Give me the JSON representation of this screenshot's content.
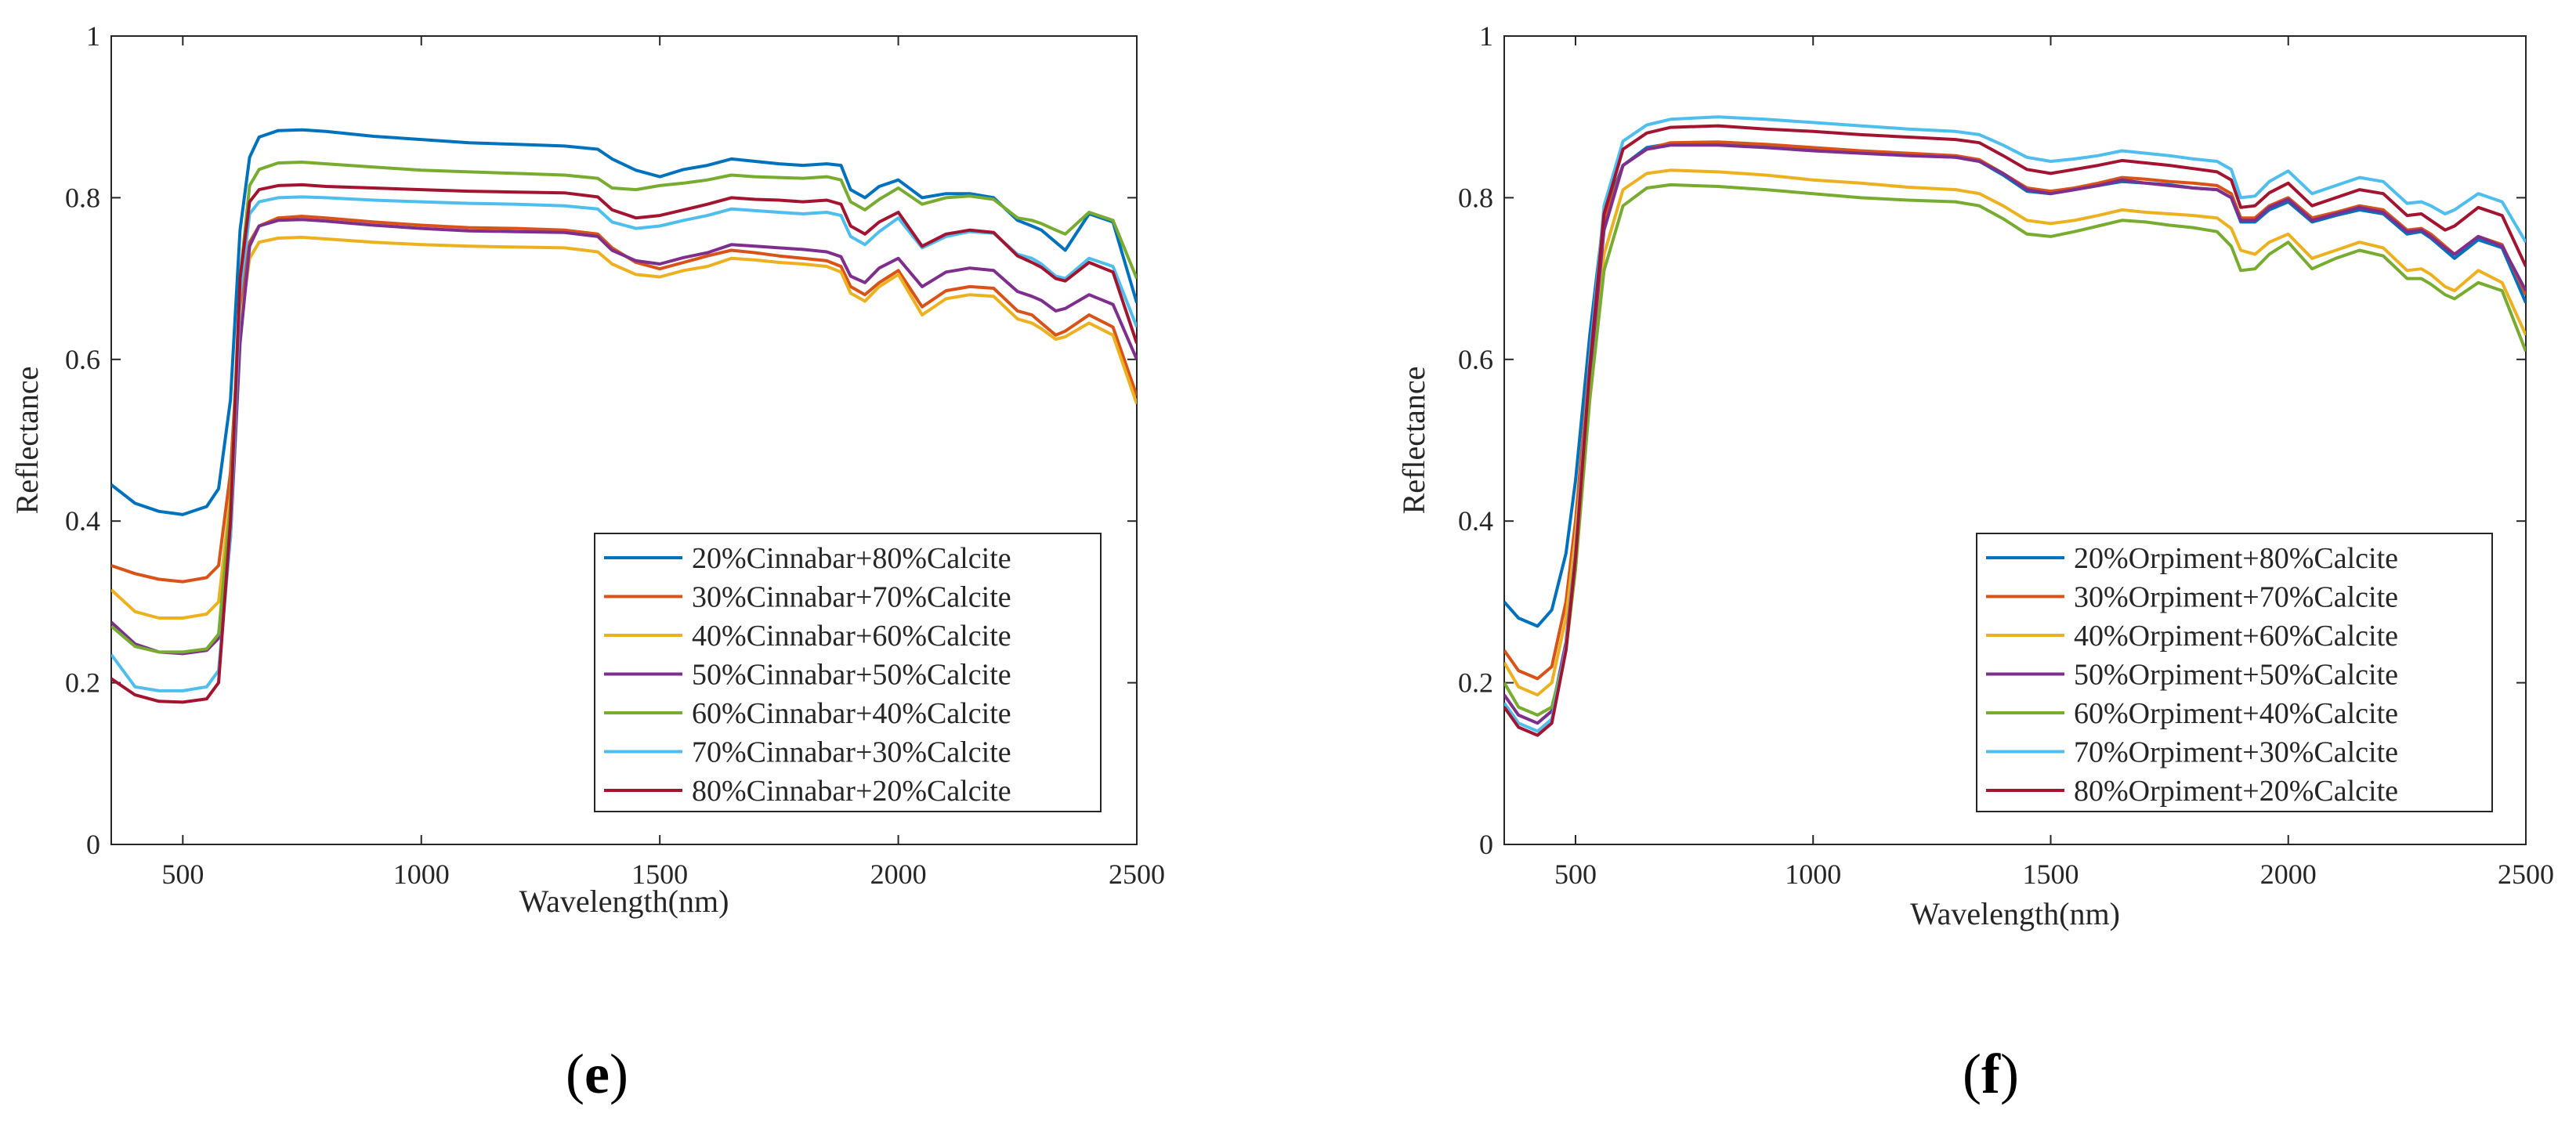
{
  "chart_data": [
    {
      "type": "line",
      "panel_label_open": "(",
      "panel_label_letter": "e",
      "panel_label_close": ")",
      "xlabel": "Wavelength(nm)",
      "ylabel": "Reflectance",
      "xlim": [
        350,
        2500
      ],
      "ylim": [
        0,
        1
      ],
      "xticks": [
        500,
        1000,
        1500,
        2000,
        2500
      ],
      "yticks": [
        0,
        0.2,
        0.4,
        0.6,
        0.8,
        1
      ],
      "ytick_labels": [
        "0",
        "0.2",
        "0.4",
        "0.6",
        "0.8",
        "1"
      ],
      "legend_position": "bottom-right",
      "x": [
        350,
        400,
        450,
        500,
        550,
        575,
        600,
        620,
        640,
        660,
        700,
        750,
        800,
        900,
        1000,
        1100,
        1200,
        1300,
        1370,
        1400,
        1450,
        1500,
        1550,
        1600,
        1650,
        1700,
        1750,
        1800,
        1850,
        1880,
        1900,
        1930,
        1960,
        2000,
        2050,
        2100,
        2150,
        2200,
        2250,
        2280,
        2300,
        2330,
        2350,
        2400,
        2450,
        2500
      ],
      "series": [
        {
          "name": "20%Cinnabar+80%Calcite",
          "color": "#0072BD",
          "values": [
            0.445,
            0.422,
            0.412,
            0.408,
            0.418,
            0.44,
            0.55,
            0.76,
            0.85,
            0.875,
            0.883,
            0.884,
            0.882,
            0.876,
            0.872,
            0.868,
            0.866,
            0.864,
            0.86,
            0.848,
            0.834,
            0.826,
            0.835,
            0.84,
            0.848,
            0.845,
            0.842,
            0.84,
            0.842,
            0.84,
            0.81,
            0.8,
            0.814,
            0.822,
            0.8,
            0.805,
            0.805,
            0.8,
            0.772,
            0.765,
            0.76,
            0.745,
            0.735,
            0.78,
            0.77,
            0.67
          ]
        },
        {
          "name": "30%Cinnabar+70%Calcite",
          "color": "#D95319",
          "values": [
            0.345,
            0.335,
            0.328,
            0.325,
            0.33,
            0.345,
            0.46,
            0.66,
            0.745,
            0.765,
            0.775,
            0.777,
            0.775,
            0.77,
            0.766,
            0.763,
            0.762,
            0.76,
            0.755,
            0.738,
            0.72,
            0.712,
            0.72,
            0.728,
            0.735,
            0.732,
            0.728,
            0.725,
            0.722,
            0.715,
            0.69,
            0.68,
            0.695,
            0.71,
            0.665,
            0.685,
            0.69,
            0.688,
            0.66,
            0.655,
            0.645,
            0.63,
            0.635,
            0.655,
            0.64,
            0.555
          ]
        },
        {
          "name": "40%Cinnabar+60%Calcite",
          "color": "#EDB120",
          "values": [
            0.315,
            0.288,
            0.28,
            0.28,
            0.285,
            0.3,
            0.43,
            0.64,
            0.725,
            0.745,
            0.75,
            0.751,
            0.749,
            0.745,
            0.742,
            0.74,
            0.739,
            0.738,
            0.733,
            0.718,
            0.705,
            0.702,
            0.71,
            0.715,
            0.725,
            0.723,
            0.72,
            0.718,
            0.715,
            0.708,
            0.682,
            0.672,
            0.69,
            0.705,
            0.655,
            0.675,
            0.68,
            0.678,
            0.65,
            0.645,
            0.638,
            0.625,
            0.628,
            0.645,
            0.63,
            0.545
          ]
        },
        {
          "name": "50%Cinnabar+50%Calcite",
          "color": "#7E2F8E",
          "values": [
            0.275,
            0.248,
            0.238,
            0.236,
            0.24,
            0.255,
            0.38,
            0.62,
            0.74,
            0.765,
            0.772,
            0.773,
            0.771,
            0.766,
            0.762,
            0.759,
            0.758,
            0.757,
            0.752,
            0.735,
            0.722,
            0.718,
            0.726,
            0.732,
            0.742,
            0.74,
            0.738,
            0.736,
            0.733,
            0.727,
            0.703,
            0.695,
            0.713,
            0.725,
            0.69,
            0.708,
            0.713,
            0.71,
            0.684,
            0.678,
            0.673,
            0.66,
            0.663,
            0.68,
            0.668,
            0.6
          ]
        },
        {
          "name": "60%Cinnabar+40%Calcite",
          "color": "#77AC30",
          "values": [
            0.27,
            0.245,
            0.238,
            0.238,
            0.242,
            0.26,
            0.42,
            0.7,
            0.815,
            0.835,
            0.843,
            0.844,
            0.842,
            0.838,
            0.834,
            0.832,
            0.83,
            0.828,
            0.824,
            0.812,
            0.81,
            0.815,
            0.818,
            0.822,
            0.828,
            0.826,
            0.825,
            0.824,
            0.826,
            0.822,
            0.795,
            0.785,
            0.798,
            0.812,
            0.792,
            0.8,
            0.802,
            0.798,
            0.775,
            0.772,
            0.768,
            0.76,
            0.755,
            0.782,
            0.772,
            0.7
          ]
        },
        {
          "name": "70%Cinnabar+30%Calcite",
          "color": "#4DBEEE",
          "values": [
            0.235,
            0.195,
            0.19,
            0.19,
            0.195,
            0.215,
            0.38,
            0.68,
            0.78,
            0.795,
            0.8,
            0.801,
            0.8,
            0.797,
            0.795,
            0.793,
            0.792,
            0.79,
            0.786,
            0.77,
            0.762,
            0.765,
            0.772,
            0.778,
            0.786,
            0.784,
            0.782,
            0.78,
            0.782,
            0.778,
            0.752,
            0.742,
            0.758,
            0.775,
            0.738,
            0.752,
            0.758,
            0.756,
            0.73,
            0.725,
            0.718,
            0.703,
            0.7,
            0.725,
            0.715,
            0.64
          ]
        },
        {
          "name": "80%Cinnabar+20%Calcite",
          "color": "#A2142F",
          "values": [
            0.205,
            0.185,
            0.177,
            0.176,
            0.18,
            0.2,
            0.4,
            0.7,
            0.795,
            0.81,
            0.815,
            0.816,
            0.814,
            0.812,
            0.81,
            0.808,
            0.807,
            0.806,
            0.801,
            0.785,
            0.775,
            0.778,
            0.785,
            0.792,
            0.8,
            0.798,
            0.797,
            0.795,
            0.797,
            0.792,
            0.765,
            0.755,
            0.77,
            0.782,
            0.74,
            0.755,
            0.76,
            0.757,
            0.728,
            0.72,
            0.714,
            0.7,
            0.697,
            0.72,
            0.708,
            0.62
          ]
        }
      ]
    },
    {
      "type": "line",
      "panel_label_open": "(",
      "panel_label_letter": "f",
      "panel_label_close": ")",
      "xlabel": "Wavelength(nm)",
      "ylabel": "Reflectance",
      "xlim": [
        350,
        2500
      ],
      "ylim": [
        0,
        1
      ],
      "xticks": [
        500,
        1000,
        1500,
        2000,
        2500
      ],
      "yticks": [
        0,
        0.2,
        0.4,
        0.6,
        0.8,
        1
      ],
      "ytick_labels": [
        "0",
        "0.2",
        "0.4",
        "0.6",
        "0.8",
        "1"
      ],
      "legend_position": "bottom-right",
      "x": [
        350,
        380,
        420,
        450,
        480,
        500,
        530,
        560,
        600,
        650,
        700,
        800,
        900,
        1000,
        1100,
        1200,
        1300,
        1350,
        1400,
        1450,
        1500,
        1550,
        1600,
        1650,
        1700,
        1750,
        1800,
        1850,
        1880,
        1900,
        1930,
        1960,
        2000,
        2050,
        2100,
        2150,
        2200,
        2250,
        2280,
        2300,
        2330,
        2350,
        2400,
        2450,
        2500
      ],
      "series": [
        {
          "name": "20%Orpiment+80%Calcite",
          "color": "#0072BD",
          "values": [
            0.3,
            0.28,
            0.27,
            0.29,
            0.36,
            0.45,
            0.63,
            0.78,
            0.84,
            0.862,
            0.867,
            0.868,
            0.865,
            0.86,
            0.856,
            0.853,
            0.85,
            0.845,
            0.828,
            0.808,
            0.805,
            0.81,
            0.815,
            0.82,
            0.818,
            0.816,
            0.812,
            0.81,
            0.8,
            0.77,
            0.77,
            0.785,
            0.795,
            0.77,
            0.778,
            0.785,
            0.78,
            0.755,
            0.758,
            0.75,
            0.735,
            0.725,
            0.748,
            0.738,
            0.67
          ]
        },
        {
          "name": "30%Orpiment+70%Calcite",
          "color": "#D95319",
          "values": [
            0.24,
            0.215,
            0.205,
            0.22,
            0.3,
            0.4,
            0.6,
            0.77,
            0.84,
            0.86,
            0.868,
            0.869,
            0.866,
            0.862,
            0.858,
            0.855,
            0.852,
            0.847,
            0.83,
            0.812,
            0.808,
            0.812,
            0.818,
            0.825,
            0.823,
            0.82,
            0.818,
            0.815,
            0.805,
            0.775,
            0.775,
            0.79,
            0.8,
            0.775,
            0.782,
            0.79,
            0.785,
            0.76,
            0.762,
            0.755,
            0.74,
            0.73,
            0.752,
            0.742,
            0.68
          ]
        },
        {
          "name": "40%Orpiment+60%Calcite",
          "color": "#EDB120",
          "values": [
            0.225,
            0.195,
            0.185,
            0.2,
            0.28,
            0.38,
            0.57,
            0.73,
            0.81,
            0.83,
            0.834,
            0.832,
            0.828,
            0.822,
            0.818,
            0.813,
            0.81,
            0.805,
            0.79,
            0.772,
            0.768,
            0.772,
            0.778,
            0.785,
            0.782,
            0.78,
            0.778,
            0.775,
            0.762,
            0.735,
            0.73,
            0.745,
            0.755,
            0.725,
            0.735,
            0.745,
            0.738,
            0.71,
            0.712,
            0.705,
            0.69,
            0.685,
            0.71,
            0.695,
            0.63
          ]
        },
        {
          "name": "50%Orpiment+50%Calcite",
          "color": "#7E2F8E",
          "values": [
            0.185,
            0.16,
            0.15,
            0.165,
            0.25,
            0.36,
            0.58,
            0.76,
            0.84,
            0.86,
            0.865,
            0.865,
            0.862,
            0.858,
            0.855,
            0.852,
            0.85,
            0.845,
            0.83,
            0.81,
            0.805,
            0.81,
            0.815,
            0.822,
            0.818,
            0.815,
            0.812,
            0.81,
            0.8,
            0.772,
            0.772,
            0.788,
            0.798,
            0.772,
            0.78,
            0.788,
            0.782,
            0.758,
            0.76,
            0.752,
            0.738,
            0.73,
            0.752,
            0.74,
            0.685
          ]
        },
        {
          "name": "60%Orpiment+40%Calcite",
          "color": "#77AC30",
          "values": [
            0.2,
            0.17,
            0.16,
            0.17,
            0.24,
            0.34,
            0.55,
            0.71,
            0.79,
            0.812,
            0.816,
            0.814,
            0.81,
            0.805,
            0.8,
            0.797,
            0.795,
            0.79,
            0.774,
            0.755,
            0.752,
            0.758,
            0.765,
            0.772,
            0.77,
            0.766,
            0.763,
            0.758,
            0.74,
            0.71,
            0.712,
            0.73,
            0.745,
            0.712,
            0.725,
            0.735,
            0.728,
            0.7,
            0.7,
            0.693,
            0.68,
            0.675,
            0.695,
            0.685,
            0.61
          ]
        },
        {
          "name": "70%Orpiment+30%Calcite",
          "color": "#4DBEEE",
          "values": [
            0.175,
            0.15,
            0.14,
            0.155,
            0.245,
            0.36,
            0.6,
            0.79,
            0.87,
            0.89,
            0.897,
            0.9,
            0.897,
            0.893,
            0.889,
            0.885,
            0.882,
            0.878,
            0.865,
            0.85,
            0.845,
            0.848,
            0.852,
            0.858,
            0.855,
            0.852,
            0.848,
            0.845,
            0.835,
            0.8,
            0.802,
            0.82,
            0.833,
            0.805,
            0.815,
            0.825,
            0.82,
            0.793,
            0.795,
            0.79,
            0.78,
            0.785,
            0.805,
            0.795,
            0.745
          ]
        },
        {
          "name": "80%Orpiment+20%Calcite",
          "color": "#A2142F",
          "values": [
            0.17,
            0.145,
            0.135,
            0.15,
            0.24,
            0.355,
            0.59,
            0.78,
            0.86,
            0.88,
            0.887,
            0.889,
            0.885,
            0.882,
            0.878,
            0.875,
            0.872,
            0.868,
            0.852,
            0.835,
            0.83,
            0.835,
            0.84,
            0.846,
            0.843,
            0.84,
            0.836,
            0.832,
            0.822,
            0.788,
            0.79,
            0.806,
            0.818,
            0.79,
            0.8,
            0.81,
            0.805,
            0.778,
            0.78,
            0.772,
            0.76,
            0.765,
            0.788,
            0.778,
            0.715
          ]
        }
      ]
    }
  ]
}
